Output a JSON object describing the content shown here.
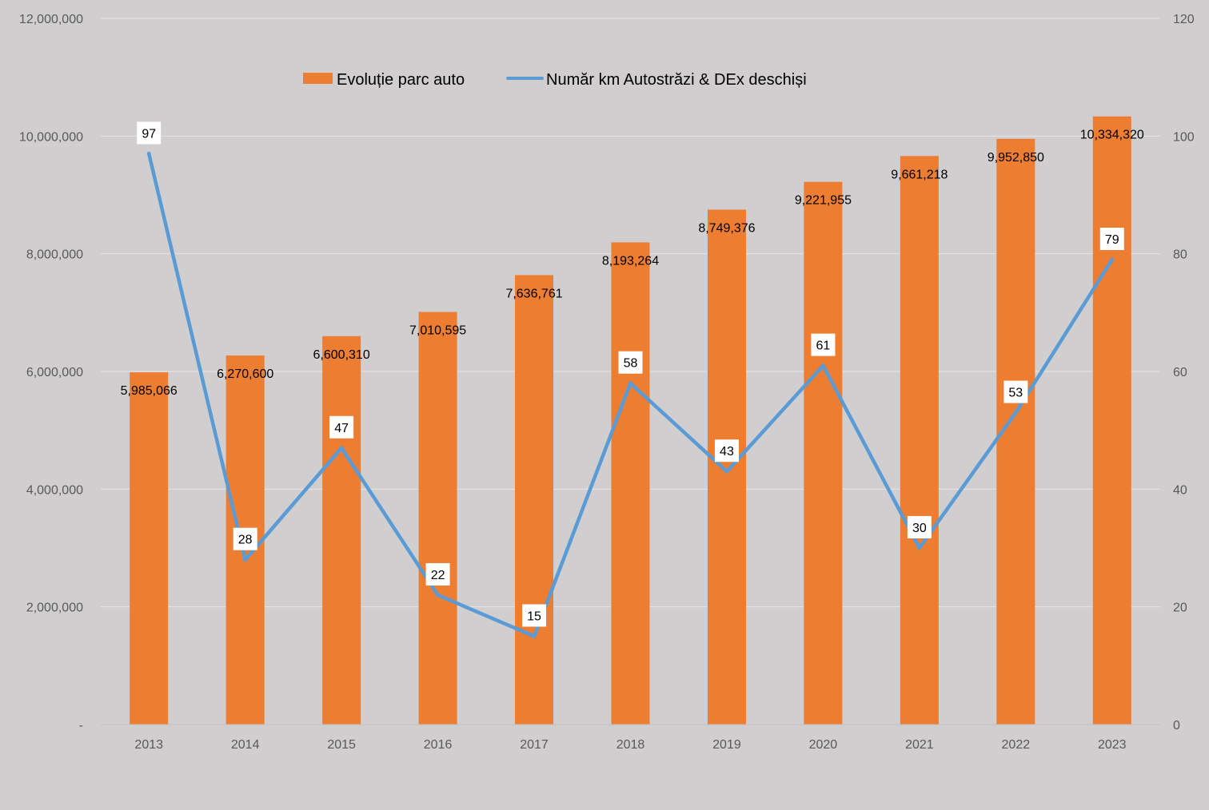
{
  "chart_data": {
    "type": "bar",
    "categories": [
      "2013",
      "2014",
      "2015",
      "2016",
      "2017",
      "2018",
      "2019",
      "2020",
      "2021",
      "2022",
      "2023"
    ],
    "series": [
      {
        "name": "Evoluție parc auto",
        "type": "bar",
        "axis": "left",
        "color": "#ed7d31",
        "values": [
          5985066,
          6270600,
          6600310,
          7010595,
          7636761,
          8193264,
          8749376,
          9221955,
          9661218,
          9952850,
          10334320
        ],
        "labels": [
          "5,985,066",
          "6,270,600",
          "6,600,310",
          "7,010,595",
          "7,636,761",
          "8,193,264",
          "8,749,376",
          "9,221,955",
          "9,661,218",
          "9,952,850",
          "10,334,320"
        ]
      },
      {
        "name": "Număr km Autostrăzi & DEx deschiși",
        "type": "line",
        "axis": "right",
        "color": "#5b9bd5",
        "values": [
          97,
          28,
          47,
          22,
          15,
          58,
          43,
          61,
          30,
          53,
          79
        ],
        "labels": [
          "97",
          "28",
          "47",
          "22",
          "15",
          "58",
          "43",
          "61",
          "30",
          "53",
          "79"
        ]
      }
    ],
    "y_left": {
      "lim": [
        0,
        12000000
      ],
      "ticks": [
        0,
        2000000,
        4000000,
        6000000,
        8000000,
        10000000,
        12000000
      ],
      "tick_labels": [
        "-",
        "2,000,000",
        "4,000,000",
        "6,000,000",
        "8,000,000",
        "10,000,000",
        "12,000,000"
      ]
    },
    "y_right": {
      "lim": [
        0,
        120
      ],
      "ticks": [
        0,
        20,
        40,
        60,
        80,
        100,
        120
      ],
      "tick_labels": [
        "0",
        "20",
        "40",
        "60",
        "80",
        "100",
        "120"
      ]
    },
    "grid": true,
    "legend": "top-center",
    "background": "#d0cece",
    "gridline_color": "#e7e6e6",
    "axis_text_color": "#595959"
  }
}
